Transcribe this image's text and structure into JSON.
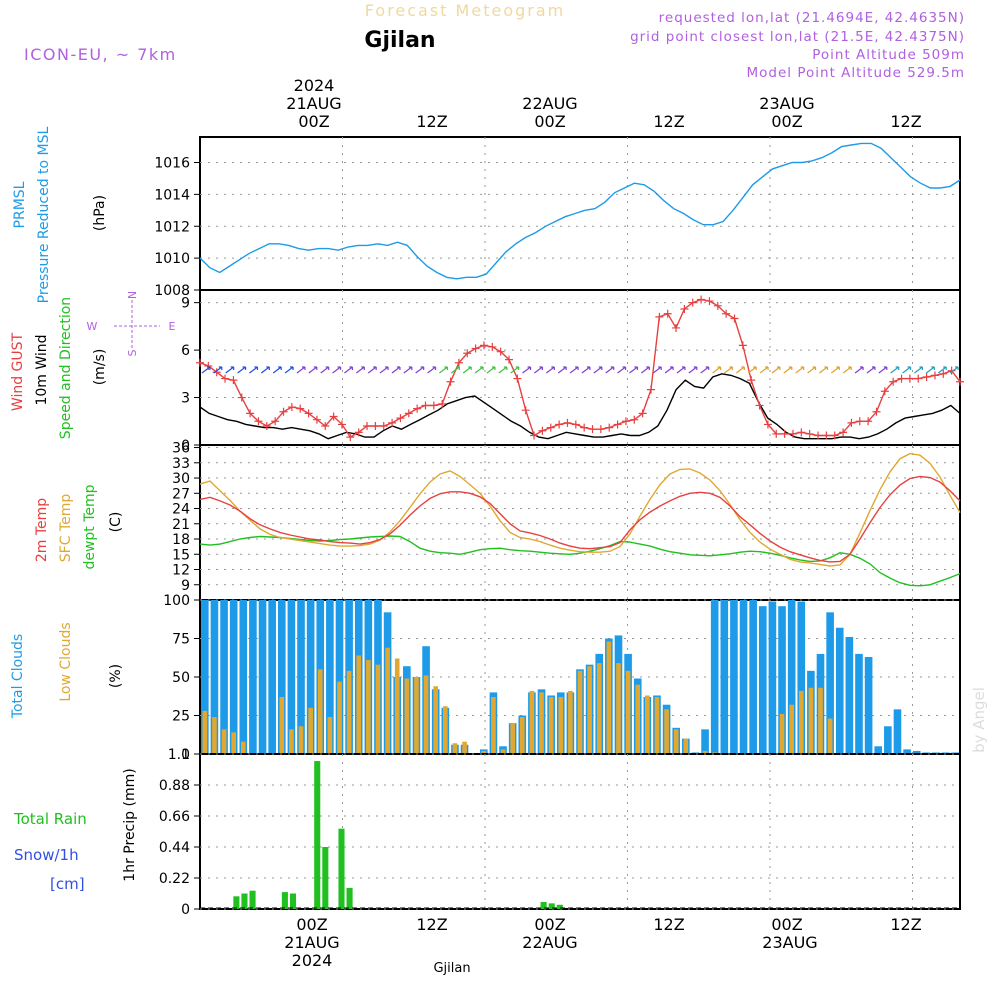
{
  "header": {
    "title": "Forecast Meteogram",
    "station": "Gjilan",
    "model": "ICON-EU, ~ 7km",
    "requested": "requested lon,lat (21.4694E, 42.4635N)",
    "gridpoint": "grid point closest lon,lat (21.5E, 42.4375N)",
    "point_altitude": "Point Altitude 509m",
    "model_altitude": "Model Point Altitude 529.5m",
    "footer": "Gjilan",
    "watermark": "by Angel"
  },
  "time_axis": {
    "top_year": "2024",
    "days": [
      "21AUG",
      "22AUG",
      "23AUG"
    ],
    "labels": [
      "00Z",
      "12Z",
      "00Z",
      "12Z",
      "00Z",
      "12Z"
    ],
    "bottom_year": "2024"
  },
  "colors": {
    "pressure": "#1e9be8",
    "gust": "#e84040",
    "wind": "#000000",
    "wind_dir": "#20c020",
    "t2m": "#e84040",
    "tsfc": "#e0a830",
    "dewpt": "#20c020",
    "total_clouds": "#1e9be8",
    "low_clouds": "#e0a830",
    "rain": "#20c020",
    "snow": "#3050e0",
    "meta": "#b060e0"
  },
  "panels": {
    "pressure": {
      "label1": "PRMSL",
      "label2": "Pressure Reduced to MSL",
      "unit": "(hPa)",
      "ticks": [
        "1008",
        "1010",
        "1012",
        "1014",
        "1016"
      ]
    },
    "wind": {
      "label_gust": "Wind GUST",
      "label_wind": "10m Wind",
      "label_dir": "Speed and Direction",
      "unit": "(m/s)",
      "ticks": [
        "0",
        "3",
        "6",
        "9"
      ],
      "compass": {
        "w": "W",
        "e": "E",
        "n": "N",
        "s": "S"
      }
    },
    "temp": {
      "label_t2m": "2m Temp",
      "label_sfc": "SFC Temp",
      "label_dew": "dewpt Temp",
      "unit": "(C)",
      "ticks": [
        "9",
        "12",
        "15",
        "18",
        "21",
        "24",
        "27",
        "30",
        "33",
        "36"
      ]
    },
    "clouds": {
      "label_total": "Total Clouds",
      "label_low": "Low Clouds",
      "unit": "(%)",
      "ticks": [
        "0",
        "25",
        "50",
        "75",
        "100"
      ]
    },
    "precip": {
      "label_rain": "Total  Rain",
      "label_snow": "Snow/1h",
      "label_cm": "[cm]",
      "unit": "1hr Precip (mm)",
      "ticks": [
        "0",
        "0.22",
        "0.44",
        "0.66",
        "0.88",
        "1.1"
      ]
    }
  },
  "chart_data": {
    "type": "line",
    "x_hours_from": "2024-08-20 15Z",
    "hour_range": [
      0,
      64
    ],
    "pressure_hpa": [
      1010.0,
      1009.4,
      1009.1,
      1009.5,
      1009.9,
      1010.3,
      1010.6,
      1010.9,
      1010.9,
      1010.8,
      1010.6,
      1010.5,
      1010.6,
      1010.6,
      1010.5,
      1010.7,
      1010.8,
      1010.8,
      1010.9,
      1010.8,
      1011.0,
      1010.8,
      1010.1,
      1009.5,
      1009.1,
      1008.8,
      1008.7,
      1008.8,
      1008.8,
      1009.0,
      1009.7,
      1010.4,
      1010.9,
      1011.3,
      1011.6,
      1012.0,
      1012.3,
      1012.6,
      1012.8,
      1013.0,
      1013.1,
      1013.5,
      1014.1,
      1014.4,
      1014.7,
      1014.6,
      1014.2,
      1013.6,
      1013.1,
      1012.8,
      1012.4,
      1012.1,
      1012.1,
      1012.3,
      1013.0,
      1013.8,
      1014.6,
      1015.1,
      1015.6,
      1015.8,
      1016.0,
      1016.0,
      1016.1,
      1016.3,
      1016.6,
      1017.0,
      1017.1,
      1017.2,
      1017.2,
      1016.9,
      1016.3,
      1015.7,
      1015.1,
      1014.7,
      1014.4,
      1014.4,
      1014.5,
      1014.9
    ],
    "gust_ms": [
      5.2,
      5.0,
      4.6,
      4.2,
      4.1,
      3.0,
      2.0,
      1.5,
      1.2,
      1.5,
      2.1,
      2.4,
      2.3,
      2.0,
      1.6,
      1.2,
      1.8,
      1.3,
      0.5,
      0.8,
      1.2,
      1.2,
      1.2,
      1.4,
      1.7,
      2.0,
      2.3,
      2.5,
      2.5,
      2.6,
      4.0,
      5.2,
      5.8,
      6.1,
      6.3,
      6.2,
      5.9,
      5.4,
      4.2,
      2.2,
      0.6,
      0.9,
      1.1,
      1.3,
      1.4,
      1.3,
      1.1,
      1.0,
      1.0,
      1.1,
      1.3,
      1.5,
      1.6,
      2.0,
      3.5,
      8.1,
      8.3,
      7.4,
      8.6,
      9.0,
      9.2,
      9.1,
      8.8,
      8.3,
      8.0,
      6.3,
      4.1,
      2.5,
      1.3,
      0.7,
      0.7,
      0.7,
      0.8,
      0.7,
      0.6,
      0.6,
      0.6,
      0.8,
      1.4,
      1.5,
      1.5,
      2.1,
      3.4,
      4.0,
      4.2,
      4.2,
      4.2,
      4.3,
      4.4,
      4.5,
      4.7,
      4.0
    ],
    "wind_ms": [
      2.4,
      2.0,
      1.8,
      1.6,
      1.5,
      1.3,
      1.2,
      1.1,
      1.1,
      1.0,
      1.1,
      1.0,
      0.9,
      0.7,
      0.4,
      0.6,
      0.8,
      0.7,
      0.5,
      0.5,
      0.9,
      1.2,
      1.0,
      1.3,
      1.6,
      1.9,
      2.2,
      2.6,
      2.8,
      3.0,
      3.1,
      2.7,
      2.3,
      1.9,
      1.5,
      1.2,
      0.8,
      0.5,
      0.4,
      0.6,
      0.8,
      0.7,
      0.6,
      0.5,
      0.5,
      0.6,
      0.7,
      0.6,
      0.6,
      0.8,
      1.2,
      2.2,
      3.5,
      4.1,
      3.7,
      3.6,
      4.3,
      4.5,
      4.4,
      4.2,
      3.9,
      2.7,
      1.7,
      1.3,
      0.8,
      0.5,
      0.4,
      0.4,
      0.4,
      0.4,
      0.5,
      0.5,
      0.4,
      0.5,
      0.7,
      1.0,
      1.4,
      1.7,
      1.8,
      1.9,
      2.0,
      2.2,
      2.5,
      2.0
    ],
    "t2m_c": [
      25.8,
      26.2,
      25.5,
      24.7,
      23.5,
      22.0,
      20.8,
      20.0,
      19.3,
      18.8,
      18.4,
      18.0,
      17.8,
      17.5,
      17.3,
      17.2,
      17.0,
      17.3,
      17.9,
      19.0,
      20.7,
      22.7,
      24.5,
      26.0,
      26.9,
      27.3,
      27.3,
      27.0,
      26.3,
      25.0,
      23.0,
      21.0,
      19.6,
      19.2,
      18.7,
      18.0,
      17.2,
      16.6,
      16.2,
      16.1,
      16.3,
      16.5,
      17.3,
      19.8,
      21.8,
      23.3,
      24.5,
      25.5,
      26.4,
      27.0,
      27.2,
      27.0,
      26.2,
      24.5,
      22.4,
      20.8,
      19.1,
      17.6,
      16.4,
      15.5,
      14.9,
      14.3,
      13.8,
      13.5,
      13.6,
      15.0,
      18.0,
      21.2,
      24.2,
      26.7,
      28.6,
      29.9,
      30.3,
      30.1,
      29.2,
      27.5,
      25.5
    ],
    "tsfc_c": [
      28.8,
      29.4,
      27.5,
      25.6,
      23.5,
      21.7,
      20.0,
      18.9,
      18.3,
      18.0,
      17.7,
      17.4,
      17.1,
      16.8,
      16.6,
      16.6,
      16.7,
      17.0,
      17.8,
      19.4,
      21.6,
      24.2,
      26.9,
      29.2,
      30.8,
      31.4,
      30.3,
      28.7,
      27.0,
      24.5,
      21.6,
      19.3,
      18.3,
      18.0,
      17.5,
      16.8,
      16.2,
      15.8,
      15.5,
      15.4,
      15.4,
      15.6,
      16.5,
      19.0,
      22.5,
      25.8,
      28.7,
      30.8,
      31.7,
      31.8,
      31.0,
      29.6,
      27.5,
      24.8,
      21.8,
      19.3,
      17.4,
      16.0,
      15.0,
      14.0,
      13.5,
      13.3,
      13.0,
      12.7,
      12.9,
      15.0,
      19.2,
      23.6,
      27.7,
      31.2,
      33.8,
      34.8,
      34.5,
      32.9,
      30.2,
      26.6,
      23.2
    ],
    "dewpt_c": [
      17.0,
      16.8,
      17.0,
      17.5,
      18.0,
      18.3,
      18.5,
      18.4,
      18.3,
      18.1,
      17.9,
      17.7,
      17.6,
      17.7,
      17.9,
      18.0,
      18.2,
      18.4,
      18.5,
      18.6,
      18.5,
      17.5,
      16.2,
      15.6,
      15.3,
      15.2,
      15.0,
      15.4,
      15.9,
      16.1,
      16.2,
      15.9,
      15.7,
      15.6,
      15.4,
      15.2,
      15.1,
      15.0,
      15.2,
      15.6,
      16.1,
      16.7,
      17.5,
      17.4,
      17.0,
      16.6,
      16.0,
      15.5,
      15.2,
      14.9,
      14.8,
      14.7,
      14.9,
      15.1,
      15.4,
      15.6,
      15.5,
      15.2,
      14.8,
      14.3,
      13.9,
      13.6,
      13.7,
      14.3,
      15.3,
      15.0,
      14.2,
      13.1,
      11.4,
      10.3,
      9.4,
      8.9,
      8.8,
      9.0,
      9.7,
      10.4,
      11.2
    ],
    "total_clouds_pct": [
      100,
      100,
      100,
      100,
      100,
      100,
      100,
      100,
      100,
      100,
      100,
      100,
      100,
      100,
      100,
      100,
      100,
      100,
      100,
      92,
      50,
      57,
      50,
      70,
      42,
      30,
      6,
      6,
      0,
      3,
      40,
      5,
      20,
      25,
      40,
      42,
      38,
      40,
      40,
      55,
      58,
      65,
      75,
      77,
      65,
      49,
      37,
      38,
      32,
      17,
      10,
      1,
      16,
      100,
      100,
      100,
      100,
      100,
      96,
      99,
      96,
      100,
      99,
      54,
      65,
      92,
      82,
      76,
      65,
      63,
      5,
      18,
      29,
      3,
      2,
      1,
      1,
      1,
      1
    ],
    "low_clouds_pct": [
      28,
      24,
      16,
      14,
      8,
      0,
      0,
      0,
      37,
      16,
      18,
      30,
      55,
      24,
      47,
      54,
      64,
      61,
      58,
      69,
      62,
      49,
      50,
      51,
      44,
      31,
      7,
      8,
      0,
      2,
      37,
      3,
      20,
      24,
      41,
      40,
      37,
      37,
      41,
      54,
      57,
      59,
      73,
      59,
      54,
      45,
      38,
      37,
      29,
      16,
      10,
      0,
      2,
      1,
      0,
      0,
      0,
      0,
      0,
      0,
      26,
      32,
      41,
      43,
      43,
      23,
      0,
      0,
      0,
      0,
      0,
      0,
      0,
      0,
      0,
      0,
      0,
      0,
      0
    ],
    "precip_mm": [
      0,
      0,
      0,
      0,
      0.09,
      0.11,
      0.13,
      0,
      0,
      0,
      0.12,
      0.11,
      0,
      0,
      1.05,
      0.44,
      0,
      0.57,
      0.15,
      0,
      0,
      0,
      0,
      0,
      0,
      0,
      0,
      0,
      0,
      0,
      0,
      0,
      0,
      0,
      0,
      0,
      0,
      0,
      0,
      0,
      0,
      0,
      0.05,
      0.04,
      0.03,
      0,
      0,
      0,
      0,
      0,
      0,
      0,
      0,
      0,
      0,
      0,
      0,
      0,
      0,
      0,
      0,
      0,
      0,
      0,
      0,
      0,
      0,
      0,
      0,
      0,
      0,
      0,
      0,
      0,
      0,
      0,
      0,
      0,
      0,
      0,
      0,
      0,
      0,
      0,
      0,
      0,
      0,
      0,
      0,
      0,
      0,
      0,
      0,
      0
    ],
    "ylim": {
      "pressure": [
        1008,
        1017.6
      ],
      "wind": [
        0,
        9.8
      ],
      "temp": [
        6,
        36.5
      ],
      "clouds": [
        0,
        100
      ],
      "precip": [
        0,
        1.1
      ]
    }
  }
}
